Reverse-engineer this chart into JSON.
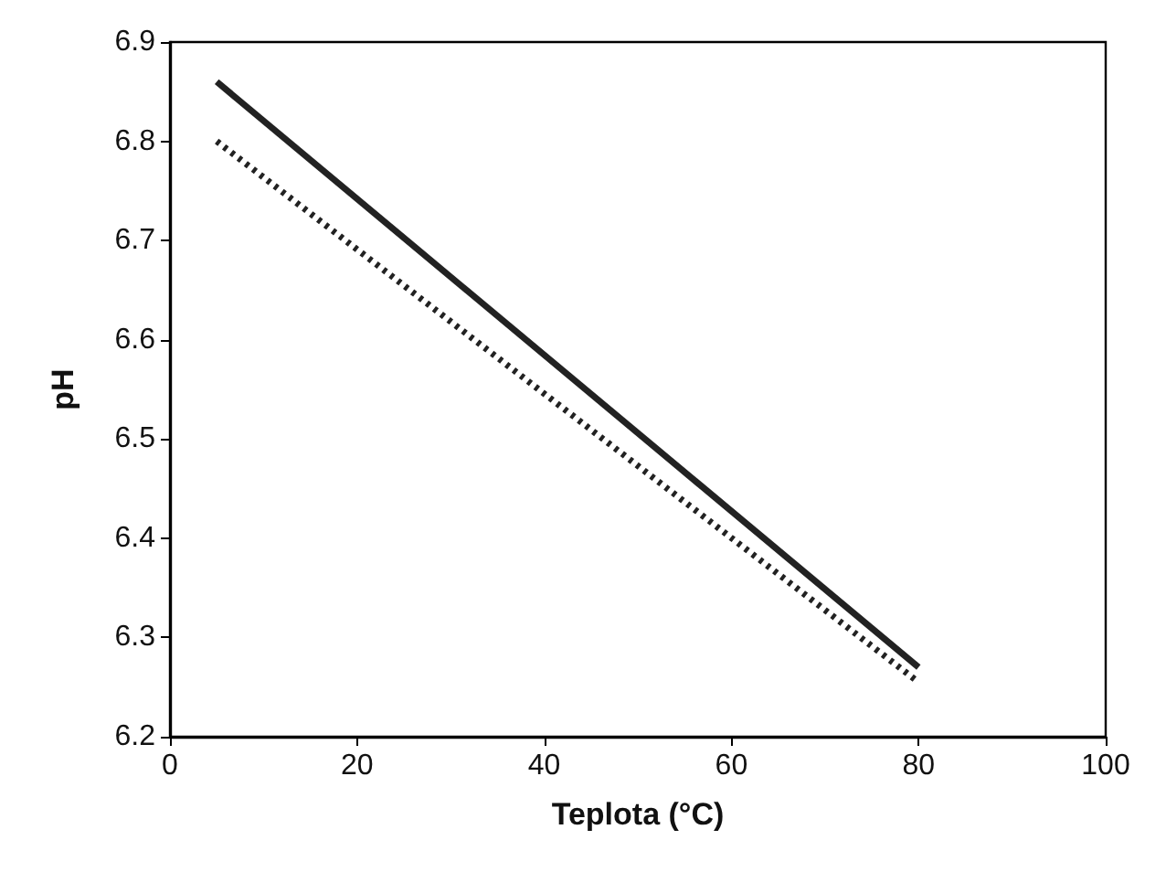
{
  "chart_data": {
    "type": "line",
    "xlabel": "Teplota (°C)",
    "ylabel": "pH",
    "xlim": [
      0,
      100
    ],
    "xticks": [
      0,
      20,
      40,
      60,
      80,
      100
    ],
    "ylim": [
      6.2,
      6.9
    ],
    "yticks": [
      {
        "value": 6.2,
        "label": "6.2"
      },
      {
        "value": 6.3,
        "label": "6.3"
      },
      {
        "value": 6.4,
        "label": "6.4"
      },
      {
        "value": 6.5,
        "label": "6.5"
      },
      {
        "value": 6.6,
        "label": "6.6"
      },
      {
        "value": 6.7,
        "label": "6.7"
      },
      {
        "value": 6.8,
        "label": "6.8"
      },
      {
        "value": 6.9,
        "label": "6.9"
      }
    ],
    "grid": false,
    "marker": "none",
    "x": [
      5,
      80
    ],
    "series": [
      {
        "color": "#222222",
        "values": [
          6.86,
          6.27
        ],
        "line_style": "solid"
      },
      {
        "color": "#222222",
        "values": [
          6.8,
          6.255
        ],
        "line_style": "dotted"
      }
    ]
  }
}
